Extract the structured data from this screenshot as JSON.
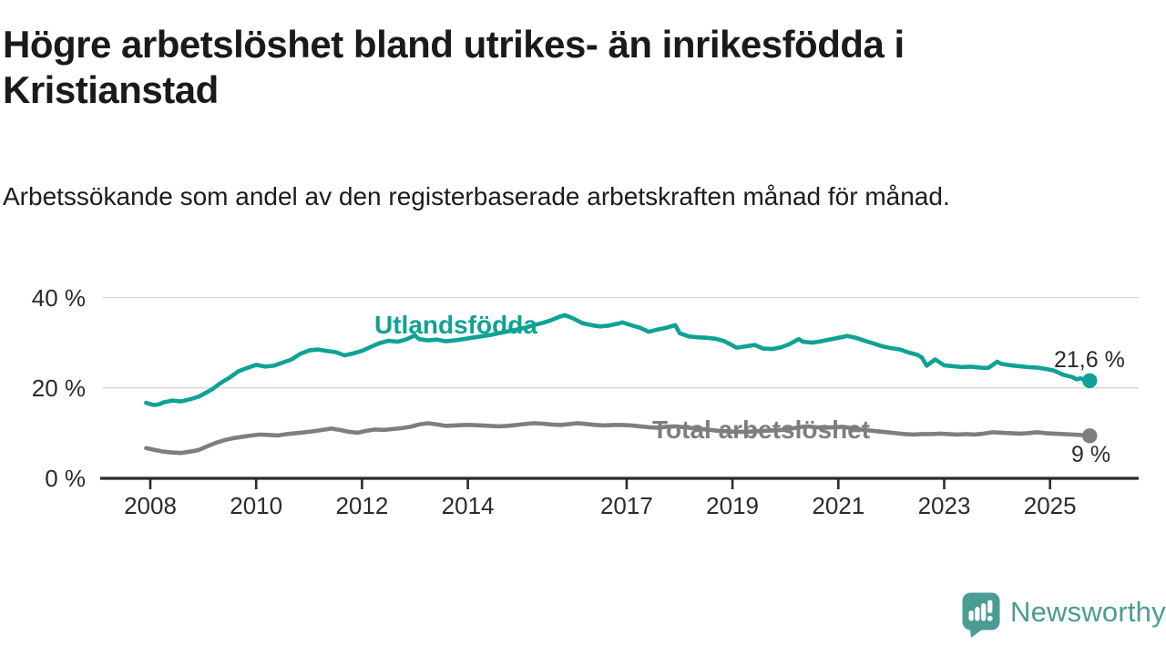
{
  "header": {
    "title": "Högre arbetslöshet bland utrikes- än inrikesfödda i Kristianstad",
    "subtitle": "Arbetssökande som andel av den registerbaserade arbetskraften månad för månad."
  },
  "branding": {
    "logo_text": "Newsworthy",
    "logo_color": "#4a9c95"
  },
  "chart_data": {
    "type": "line",
    "title": "Högre arbetslöshet bland utrikes- än inrikesfödda i Kristianstad",
    "xlabel": "",
    "ylabel": "",
    "grid": "horizontal",
    "legend_position": "inline-labels",
    "xlim": [
      2007.85,
      2026.0
    ],
    "ylim": [
      0,
      40
    ],
    "y_ticks": [
      {
        "value": 40,
        "label": "40 %"
      },
      {
        "value": 20,
        "label": "20 %"
      },
      {
        "value": 0,
        "label": "0 %"
      }
    ],
    "x_ticks": [
      {
        "value": 2008,
        "label": "2008"
      },
      {
        "value": 2010,
        "label": "2010"
      },
      {
        "value": 2012,
        "label": "2012"
      },
      {
        "value": 2014,
        "label": "2014"
      },
      {
        "value": 2017,
        "label": "2017"
      },
      {
        "value": 2019,
        "label": "2019"
      },
      {
        "value": 2021,
        "label": "2021"
      },
      {
        "value": 2023,
        "label": "2023"
      },
      {
        "value": 2025,
        "label": "2025"
      }
    ],
    "colors": {
      "grid": "#d9d9d9",
      "axis": "#2b2b2b",
      "tick_text": "#2b2b2b"
    },
    "series": [
      {
        "name": "Utlandsfödda",
        "color": "#0fa294",
        "end_label": "21,6 %",
        "end_value": 21.6,
        "points": [
          [
            2007.92,
            16.7
          ],
          [
            2008.0,
            16.4
          ],
          [
            2008.08,
            16.2
          ],
          [
            2008.17,
            16.4
          ],
          [
            2008.25,
            16.8
          ],
          [
            2008.42,
            17.2
          ],
          [
            2008.58,
            17.0
          ],
          [
            2008.75,
            17.5
          ],
          [
            2008.92,
            18.1
          ],
          [
            2009.0,
            18.6
          ],
          [
            2009.17,
            19.7
          ],
          [
            2009.33,
            21.1
          ],
          [
            2009.5,
            22.3
          ],
          [
            2009.67,
            23.7
          ],
          [
            2009.83,
            24.4
          ],
          [
            2010.0,
            25.1
          ],
          [
            2010.17,
            24.7
          ],
          [
            2010.33,
            24.9
          ],
          [
            2010.5,
            25.6
          ],
          [
            2010.67,
            26.3
          ],
          [
            2010.83,
            27.5
          ],
          [
            2011.0,
            28.3
          ],
          [
            2011.17,
            28.5
          ],
          [
            2011.33,
            28.2
          ],
          [
            2011.5,
            27.9
          ],
          [
            2011.67,
            27.2
          ],
          [
            2011.83,
            27.6
          ],
          [
            2012.0,
            28.2
          ],
          [
            2012.17,
            29.1
          ],
          [
            2012.33,
            29.9
          ],
          [
            2012.5,
            30.4
          ],
          [
            2012.67,
            30.2
          ],
          [
            2012.83,
            30.7
          ],
          [
            2013.0,
            31.6
          ],
          [
            2013.08,
            30.8
          ],
          [
            2013.25,
            30.5
          ],
          [
            2013.42,
            30.7
          ],
          [
            2013.58,
            30.3
          ],
          [
            2013.75,
            30.5
          ],
          [
            2013.92,
            30.8
          ],
          [
            2014.08,
            31.1
          ],
          [
            2014.25,
            31.4
          ],
          [
            2014.42,
            31.7
          ],
          [
            2014.58,
            32.1
          ],
          [
            2014.75,
            32.5
          ],
          [
            2014.92,
            32.9
          ],
          [
            2015.08,
            33.3
          ],
          [
            2015.25,
            33.9
          ],
          [
            2015.42,
            34.4
          ],
          [
            2015.58,
            35.0
          ],
          [
            2015.75,
            35.8
          ],
          [
            2015.83,
            36.1
          ],
          [
            2015.92,
            35.7
          ],
          [
            2016.0,
            35.3
          ],
          [
            2016.17,
            34.3
          ],
          [
            2016.33,
            33.9
          ],
          [
            2016.5,
            33.6
          ],
          [
            2016.67,
            33.8
          ],
          [
            2016.83,
            34.2
          ],
          [
            2016.92,
            34.5
          ],
          [
            2017.08,
            33.9
          ],
          [
            2017.25,
            33.3
          ],
          [
            2017.42,
            32.4
          ],
          [
            2017.58,
            32.9
          ],
          [
            2017.75,
            33.3
          ],
          [
            2017.92,
            33.9
          ],
          [
            2018.0,
            32.1
          ],
          [
            2018.17,
            31.4
          ],
          [
            2018.33,
            31.2
          ],
          [
            2018.5,
            31.1
          ],
          [
            2018.67,
            30.9
          ],
          [
            2018.83,
            30.4
          ],
          [
            2019.0,
            29.4
          ],
          [
            2019.08,
            28.9
          ],
          [
            2019.25,
            29.2
          ],
          [
            2019.42,
            29.5
          ],
          [
            2019.58,
            28.7
          ],
          [
            2019.75,
            28.6
          ],
          [
            2019.92,
            29.0
          ],
          [
            2020.08,
            29.7
          ],
          [
            2020.25,
            30.8
          ],
          [
            2020.33,
            30.2
          ],
          [
            2020.5,
            30.0
          ],
          [
            2020.67,
            30.3
          ],
          [
            2020.83,
            30.7
          ],
          [
            2021.0,
            31.1
          ],
          [
            2021.17,
            31.5
          ],
          [
            2021.33,
            31.1
          ],
          [
            2021.5,
            30.4
          ],
          [
            2021.67,
            29.8
          ],
          [
            2021.83,
            29.2
          ],
          [
            2022.0,
            28.8
          ],
          [
            2022.17,
            28.5
          ],
          [
            2022.33,
            27.8
          ],
          [
            2022.5,
            27.3
          ],
          [
            2022.58,
            26.7
          ],
          [
            2022.67,
            24.9
          ],
          [
            2022.83,
            26.3
          ],
          [
            2023.0,
            25.0
          ],
          [
            2023.17,
            24.8
          ],
          [
            2023.33,
            24.6
          ],
          [
            2023.5,
            24.7
          ],
          [
            2023.67,
            24.5
          ],
          [
            2023.83,
            24.4
          ],
          [
            2023.92,
            25.1
          ],
          [
            2024.0,
            25.8
          ],
          [
            2024.08,
            25.3
          ],
          [
            2024.25,
            25.0
          ],
          [
            2024.42,
            24.8
          ],
          [
            2024.58,
            24.6
          ],
          [
            2024.75,
            24.5
          ],
          [
            2024.92,
            24.2
          ],
          [
            2025.08,
            23.8
          ],
          [
            2025.25,
            22.9
          ],
          [
            2025.42,
            22.4
          ],
          [
            2025.5,
            21.9
          ],
          [
            2025.58,
            22.1
          ],
          [
            2025.75,
            21.6
          ]
        ]
      },
      {
        "name": "Total arbetslöshet",
        "color": "#7e7e7e",
        "end_label": "9 %",
        "end_value": 9.4,
        "points": [
          [
            2007.92,
            6.7
          ],
          [
            2008.08,
            6.3
          ],
          [
            2008.25,
            5.9
          ],
          [
            2008.42,
            5.7
          ],
          [
            2008.58,
            5.6
          ],
          [
            2008.75,
            5.9
          ],
          [
            2008.92,
            6.3
          ],
          [
            2009.08,
            7.1
          ],
          [
            2009.25,
            7.9
          ],
          [
            2009.42,
            8.5
          ],
          [
            2009.58,
            8.9
          ],
          [
            2009.75,
            9.2
          ],
          [
            2009.92,
            9.5
          ],
          [
            2010.08,
            9.7
          ],
          [
            2010.25,
            9.6
          ],
          [
            2010.42,
            9.5
          ],
          [
            2010.58,
            9.8
          ],
          [
            2010.75,
            10.0
          ],
          [
            2010.92,
            10.2
          ],
          [
            2011.08,
            10.4
          ],
          [
            2011.25,
            10.7
          ],
          [
            2011.42,
            11.0
          ],
          [
            2011.58,
            10.7
          ],
          [
            2011.75,
            10.3
          ],
          [
            2011.92,
            10.1
          ],
          [
            2012.08,
            10.5
          ],
          [
            2012.25,
            10.8
          ],
          [
            2012.42,
            10.7
          ],
          [
            2012.58,
            10.9
          ],
          [
            2012.75,
            11.1
          ],
          [
            2012.92,
            11.4
          ],
          [
            2013.08,
            11.9
          ],
          [
            2013.25,
            12.2
          ],
          [
            2013.42,
            11.9
          ],
          [
            2013.58,
            11.6
          ],
          [
            2013.75,
            11.7
          ],
          [
            2013.92,
            11.8
          ],
          [
            2014.08,
            11.8
          ],
          [
            2014.25,
            11.7
          ],
          [
            2014.42,
            11.6
          ],
          [
            2014.58,
            11.5
          ],
          [
            2014.75,
            11.6
          ],
          [
            2014.92,
            11.8
          ],
          [
            2015.08,
            12.0
          ],
          [
            2015.25,
            12.2
          ],
          [
            2015.42,
            12.1
          ],
          [
            2015.58,
            11.9
          ],
          [
            2015.75,
            11.8
          ],
          [
            2015.92,
            12.0
          ],
          [
            2016.08,
            12.2
          ],
          [
            2016.25,
            12.0
          ],
          [
            2016.42,
            11.8
          ],
          [
            2016.58,
            11.7
          ],
          [
            2016.75,
            11.8
          ],
          [
            2016.92,
            11.8
          ],
          [
            2017.08,
            11.7
          ],
          [
            2017.25,
            11.5
          ],
          [
            2017.42,
            11.3
          ],
          [
            2017.58,
            11.2
          ],
          [
            2017.75,
            11.4
          ],
          [
            2017.92,
            11.5
          ],
          [
            2018.08,
            11.3
          ],
          [
            2018.25,
            11.1
          ],
          [
            2018.42,
            10.9
          ],
          [
            2018.58,
            10.7
          ],
          [
            2018.75,
            10.5
          ],
          [
            2018.92,
            10.4
          ],
          [
            2019.08,
            10.3
          ],
          [
            2019.25,
            10.3
          ],
          [
            2019.42,
            10.4
          ],
          [
            2019.58,
            10.5
          ],
          [
            2019.75,
            10.6
          ],
          [
            2019.92,
            10.7
          ],
          [
            2020.08,
            10.9
          ],
          [
            2020.25,
            11.3
          ],
          [
            2020.42,
            11.5
          ],
          [
            2020.58,
            11.3
          ],
          [
            2020.75,
            11.2
          ],
          [
            2020.92,
            11.3
          ],
          [
            2021.08,
            11.4
          ],
          [
            2021.25,
            11.1
          ],
          [
            2021.42,
            10.8
          ],
          [
            2021.58,
            10.6
          ],
          [
            2021.75,
            10.4
          ],
          [
            2021.92,
            10.2
          ],
          [
            2022.08,
            10.0
          ],
          [
            2022.25,
            9.8
          ],
          [
            2022.42,
            9.7
          ],
          [
            2022.58,
            9.8
          ],
          [
            2022.75,
            9.8
          ],
          [
            2022.92,
            9.9
          ],
          [
            2023.08,
            9.8
          ],
          [
            2023.25,
            9.7
          ],
          [
            2023.42,
            9.8
          ],
          [
            2023.58,
            9.7
          ],
          [
            2023.75,
            9.9
          ],
          [
            2023.92,
            10.2
          ],
          [
            2024.08,
            10.1
          ],
          [
            2024.25,
            10.0
          ],
          [
            2024.42,
            9.9
          ],
          [
            2024.58,
            10.0
          ],
          [
            2024.75,
            10.2
          ],
          [
            2024.92,
            10.0
          ],
          [
            2025.08,
            9.9
          ],
          [
            2025.25,
            9.8
          ],
          [
            2025.42,
            9.7
          ],
          [
            2025.58,
            9.6
          ],
          [
            2025.75,
            9.4
          ]
        ]
      }
    ]
  }
}
